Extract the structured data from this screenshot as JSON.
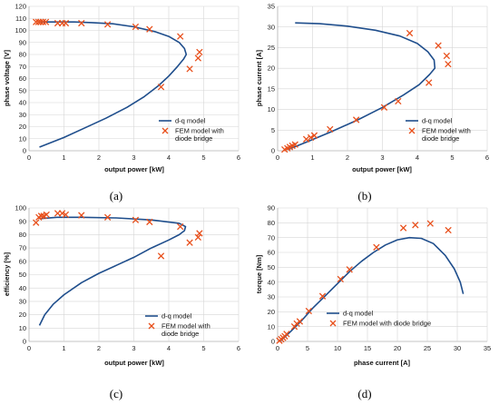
{
  "colors": {
    "model": "#1f4e8c",
    "fem": "#e8501c",
    "grid": "#d6d6d6"
  },
  "chart_data": [
    {
      "type": "scatter",
      "panel_label": "(a)",
      "xlabel": "output power [kW]",
      "ylabel": "phase voltage [V]",
      "xlim": [
        0,
        6
      ],
      "ylim": [
        0,
        120
      ],
      "xticks": [
        0,
        1,
        2,
        3,
        4,
        5,
        6
      ],
      "yticks": [
        0,
        10,
        20,
        30,
        40,
        50,
        60,
        70,
        80,
        90,
        100,
        110,
        120
      ],
      "grid": true,
      "legend_position": "bottom-right",
      "series": [
        {
          "name": "d-q model",
          "kind": "line",
          "points": [
            [
              0.3,
              3
            ],
            [
              1.0,
              11
            ],
            [
              1.6,
              19
            ],
            [
              2.2,
              27
            ],
            [
              2.8,
              36
            ],
            [
              3.3,
              45
            ],
            [
              3.7,
              54
            ],
            [
              4.0,
              62
            ],
            [
              4.25,
              70
            ],
            [
              4.42,
              76
            ],
            [
              4.5,
              80
            ],
            [
              4.45,
              85
            ],
            [
              4.3,
              90
            ],
            [
              4.0,
              95
            ],
            [
              3.6,
              99
            ],
            [
              3.0,
              103
            ],
            [
              2.4,
              105.5
            ],
            [
              1.8,
              106.5
            ],
            [
              1.3,
              107
            ],
            [
              0.8,
              107
            ],
            [
              0.3,
              107
            ]
          ]
        },
        {
          "name": "FEM model with\ndiode bridge",
          "kind": "markers",
          "points": [
            [
              0.2,
              107
            ],
            [
              0.27,
              107
            ],
            [
              0.33,
              107
            ],
            [
              0.4,
              107
            ],
            [
              0.48,
              107
            ],
            [
              0.82,
              106
            ],
            [
              0.95,
              106
            ],
            [
              1.05,
              106
            ],
            [
              1.5,
              106
            ],
            [
              2.25,
              105
            ],
            [
              3.05,
              103
            ],
            [
              3.45,
              101
            ],
            [
              4.33,
              95
            ],
            [
              4.6,
              68
            ],
            [
              3.78,
              53
            ],
            [
              4.84,
              77
            ],
            [
              4.88,
              82
            ]
          ]
        }
      ]
    },
    {
      "type": "scatter",
      "panel_label": "(b)",
      "xlabel": "output power [kW]",
      "ylabel": "phase current [A]",
      "xlim": [
        0,
        6
      ],
      "ylim": [
        0,
        35
      ],
      "xticks": [
        0,
        1,
        2,
        3,
        4,
        5,
        6
      ],
      "yticks": [
        0,
        5,
        10,
        15,
        20,
        25,
        30,
        35
      ],
      "grid": true,
      "legend_position": "bottom-right",
      "series": [
        {
          "name": "d-q model",
          "kind": "line",
          "points": [
            [
              0.3,
              0.3
            ],
            [
              0.8,
              2
            ],
            [
              1.5,
              4.5
            ],
            [
              2.3,
              7.5
            ],
            [
              3.0,
              10.5
            ],
            [
              3.6,
              13.5
            ],
            [
              4.05,
              16
            ],
            [
              4.35,
              18.5
            ],
            [
              4.5,
              20
            ],
            [
              4.48,
              22
            ],
            [
              4.3,
              24
            ],
            [
              4.0,
              26
            ],
            [
              3.5,
              27.8
            ],
            [
              2.8,
              29.2
            ],
            [
              2.0,
              30.2
            ],
            [
              1.2,
              30.8
            ],
            [
              0.5,
              31
            ]
          ]
        },
        {
          "name": "FEM model with\ndiode bridge",
          "kind": "markers",
          "points": [
            [
              0.2,
              0.3
            ],
            [
              0.28,
              0.6
            ],
            [
              0.35,
              0.9
            ],
            [
              0.42,
              1.2
            ],
            [
              0.5,
              1.5
            ],
            [
              0.82,
              2.8
            ],
            [
              0.95,
              3.2
            ],
            [
              1.05,
              3.7
            ],
            [
              1.5,
              5.2
            ],
            [
              2.25,
              7.5
            ],
            [
              3.05,
              10.5
            ],
            [
              3.45,
              12
            ],
            [
              4.33,
              16.5
            ],
            [
              3.78,
              28.5
            ],
            [
              4.6,
              25.5
            ],
            [
              4.84,
              23
            ],
            [
              4.88,
              21
            ]
          ]
        }
      ]
    },
    {
      "type": "scatter",
      "panel_label": "(c)",
      "xlabel": "output power [kW]",
      "ylabel": "efficiency [%]",
      "xlim": [
        0,
        6
      ],
      "ylim": [
        0,
        100
      ],
      "xticks": [
        0,
        1,
        2,
        3,
        4,
        5,
        6
      ],
      "yticks": [
        0,
        10,
        20,
        30,
        40,
        50,
        60,
        70,
        80,
        90,
        100
      ],
      "grid": true,
      "legend_position": "bottom-right",
      "series": [
        {
          "name": "d-q model",
          "kind": "line",
          "points": [
            [
              0.3,
              12
            ],
            [
              0.45,
              20
            ],
            [
              0.7,
              28
            ],
            [
              1.0,
              35
            ],
            [
              1.5,
              44
            ],
            [
              2.0,
              51
            ],
            [
              2.5,
              57
            ],
            [
              3.0,
              63
            ],
            [
              3.5,
              70
            ],
            [
              4.0,
              76
            ],
            [
              4.3,
              80
            ],
            [
              4.45,
              83
            ],
            [
              4.48,
              86
            ],
            [
              4.3,
              88.5
            ],
            [
              3.5,
              91
            ],
            [
              2.5,
              92.5
            ],
            [
              1.5,
              93
            ],
            [
              0.8,
              93
            ],
            [
              0.3,
              92
            ]
          ]
        },
        {
          "name": "FEM model with\ndiode bridge",
          "kind": "markers",
          "points": [
            [
              0.2,
              89
            ],
            [
              0.28,
              93
            ],
            [
              0.35,
              94
            ],
            [
              0.42,
              94
            ],
            [
              0.5,
              95
            ],
            [
              0.82,
              96
            ],
            [
              0.95,
              96
            ],
            [
              1.05,
              95
            ],
            [
              1.5,
              94.5
            ],
            [
              2.25,
              93
            ],
            [
              3.05,
              91
            ],
            [
              3.45,
              89.5
            ],
            [
              4.33,
              86
            ],
            [
              4.6,
              74
            ],
            [
              3.78,
              64
            ],
            [
              4.84,
              78
            ],
            [
              4.88,
              81
            ]
          ]
        }
      ]
    },
    {
      "type": "scatter",
      "panel_label": "(d)",
      "xlabel": "phase current [A]",
      "ylabel": "torque [Nm]",
      "xlim": [
        0,
        35
      ],
      "ylim": [
        0,
        90
      ],
      "xticks": [
        0,
        5,
        10,
        15,
        20,
        25,
        30,
        35
      ],
      "yticks": [
        0,
        10,
        20,
        30,
        40,
        50,
        60,
        70,
        80,
        90
      ],
      "grid": true,
      "legend_position": "bottom-right",
      "series": [
        {
          "name": "d-q model",
          "kind": "line",
          "points": [
            [
              0.5,
              0.5
            ],
            [
              2,
              6
            ],
            [
              4,
              14
            ],
            [
              6,
              23
            ],
            [
              8,
              31
            ],
            [
              10,
              39
            ],
            [
              12,
              47
            ],
            [
              14,
              54
            ],
            [
              16,
              60
            ],
            [
              18,
              65
            ],
            [
              20,
              68.5
            ],
            [
              22,
              70
            ],
            [
              24,
              69.5
            ],
            [
              26,
              66
            ],
            [
              28,
              58
            ],
            [
              29.5,
              49
            ],
            [
              30.5,
              40
            ],
            [
              31,
              32
            ]
          ]
        },
        {
          "name": "FEM model with diode bridge",
          "kind": "markers",
          "points": [
            [
              0.3,
              0.5
            ],
            [
              0.6,
              1.5
            ],
            [
              0.9,
              2.5
            ],
            [
              1.2,
              3.5
            ],
            [
              1.5,
              5
            ],
            [
              2.8,
              10
            ],
            [
              3.2,
              12
            ],
            [
              3.7,
              13.5
            ],
            [
              5.2,
              20.5
            ],
            [
              7.5,
              30.5
            ],
            [
              10.5,
              42
            ],
            [
              12,
              48.5
            ],
            [
              16.5,
              63.5
            ],
            [
              21,
              76.5
            ],
            [
              23,
              78.5
            ],
            [
              25.5,
              79.5
            ],
            [
              28.5,
              75
            ]
          ]
        }
      ]
    }
  ]
}
